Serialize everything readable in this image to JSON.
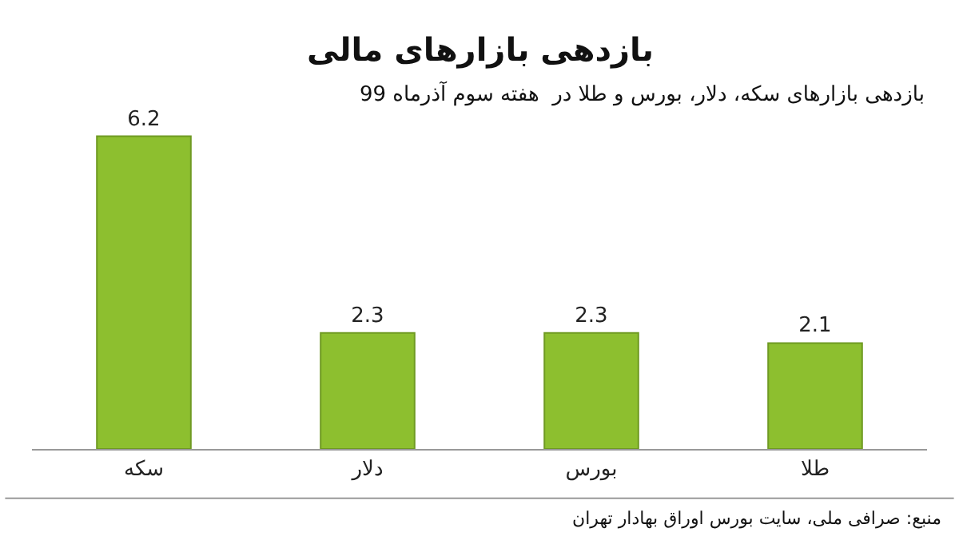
{
  "chart_data": {
    "type": "bar",
    "title": "بازدهی بازارهای مالی",
    "subtitle": "بازدهی بازارهای سکه، دلار، بورس و طلا در  هفته سوم آذرماه 99",
    "categories": [
      "سکه",
      "دلار",
      "بورس",
      "طلا"
    ],
    "values": [
      6.2,
      2.3,
      2.3,
      2.1
    ],
    "color": "#8dbf2f",
    "data_labels": true,
    "legend": false,
    "annotations": [
      "منبع: صرافی ملی، سایت بورس اوراق بهادار تهران"
    ]
  }
}
